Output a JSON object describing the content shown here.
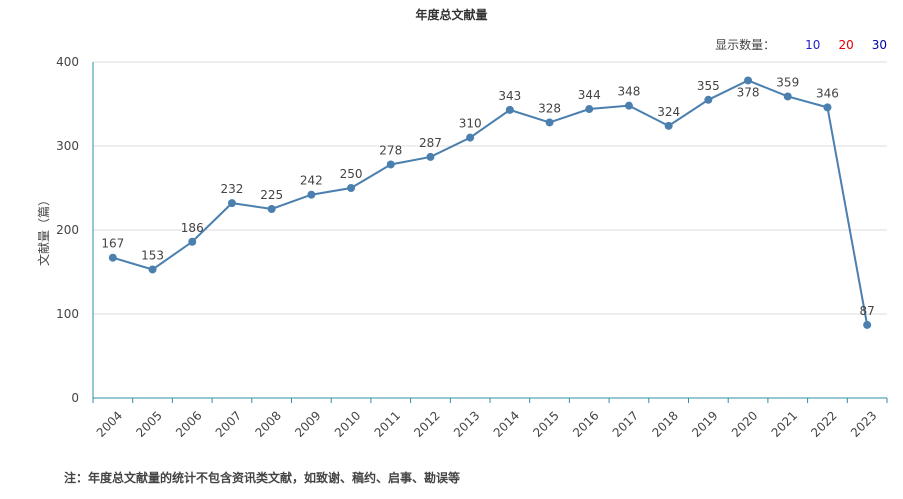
{
  "title": "年度总文献量",
  "display_count": {
    "label": "显示数量：",
    "options": [
      "10",
      "20",
      "30"
    ]
  },
  "note": "注：年度总文献量的统计不包含资讯类文献，如致谢、稿约、启事、勘误等",
  "colors": {
    "line": "#4a7fae",
    "axis": "#2f8fa6",
    "grid": "#dddddd"
  },
  "chart_data": {
    "type": "line",
    "title": "年度总文献量",
    "ylabel": "文献量（篇）",
    "xlabel": "",
    "ylim": [
      0,
      400
    ],
    "yticks": [
      0,
      100,
      200,
      300,
      400
    ],
    "grid": true,
    "categories": [
      "2004",
      "2005",
      "2006",
      "2007",
      "2008",
      "2009",
      "2010",
      "2011",
      "2012",
      "2013",
      "2014",
      "2015",
      "2016",
      "2017",
      "2018",
      "2019",
      "2020",
      "2021",
      "2022",
      "2023"
    ],
    "series": [
      {
        "values": [
          167,
          153,
          186,
          232,
          225,
          242,
          250,
          278,
          287,
          310,
          343,
          328,
          344,
          348,
          324,
          355,
          378,
          359,
          346,
          87
        ]
      }
    ]
  }
}
